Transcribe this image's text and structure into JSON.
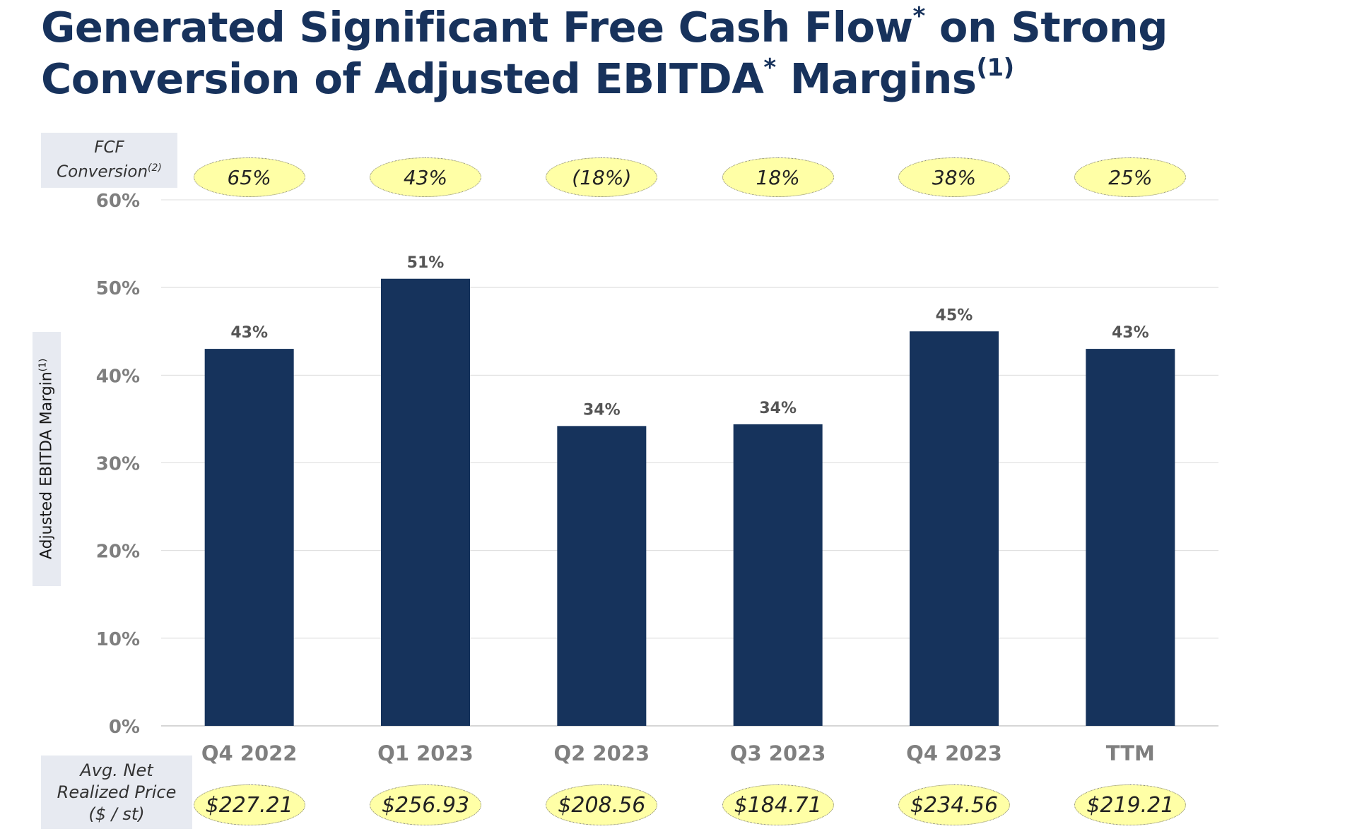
{
  "title": {
    "line1": "Generated Significant Free Cash Flow",
    "line1_mark": "*",
    "line1_end": " on Strong",
    "line2": "Conversion of Adjusted EBITDA",
    "line2_mark": "*",
    "line2_end": " Margins",
    "line2_note": "(1)"
  },
  "fcf_label": {
    "line1": "FCF",
    "line2": "Conversion",
    "note": "(2)"
  },
  "price_label": {
    "line1": "Avg. Net",
    "line2": "Realized Price",
    "line3": "($ / st)"
  },
  "y_axis_label": {
    "text": "Adjusted EBITDA Margin",
    "note": "(1)"
  },
  "fcf_conversion": [
    "65%",
    "43%",
    "(18%)",
    "18%",
    "38%",
    "25%"
  ],
  "avg_net_realized_price": [
    "$227.21",
    "$256.93",
    "$208.56",
    "$184.71",
    "$234.56",
    "$219.21"
  ],
  "colors": {
    "title": "#17325c",
    "bar": "#16335c",
    "oval": "#ffffa6",
    "label_box": "#e7eaf1",
    "axis_text": "#7f7f7f"
  },
  "chart_data": {
    "type": "bar",
    "categories": [
      "Q4 2022",
      "Q1 2023",
      "Q2 2023",
      "Q3 2023",
      "Q4 2023",
      "TTM"
    ],
    "values": [
      43,
      51,
      34.2,
      34.4,
      45,
      43
    ],
    "data_labels": [
      "43%",
      "51%",
      "34%",
      "34%",
      "45%",
      "43%"
    ],
    "ylabel": "Adjusted EBITDA Margin(1)",
    "ylim": [
      0,
      60
    ],
    "yticks": [
      0,
      10,
      20,
      30,
      40,
      50,
      60
    ],
    "ytick_labels": [
      "0%",
      "10%",
      "20%",
      "30%",
      "40%",
      "50%",
      "60%"
    ],
    "grid": true,
    "legend": "none"
  }
}
